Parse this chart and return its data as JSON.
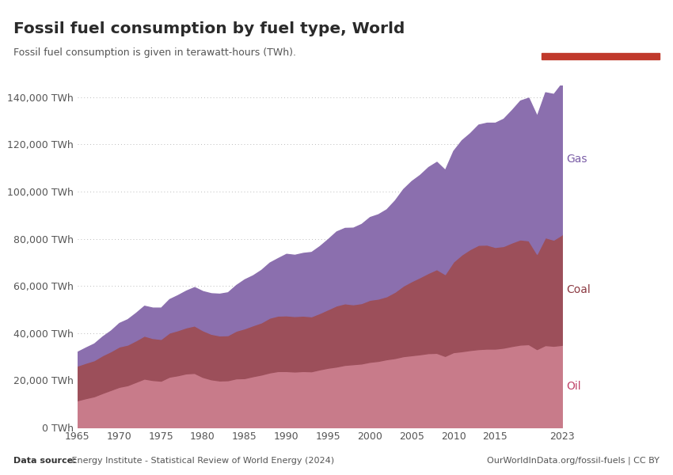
{
  "title": "Fossil fuel consumption by fuel type, World",
  "subtitle": "Fossil fuel consumption is given in terawatt-hours (TWh).",
  "source_left_bold": "Data source:",
  "source_left_normal": " Energy Institute - Statistical Review of World Energy (2024)",
  "source_right": "OurWorldInData.org/fossil-fuels | CC BY",
  "years": [
    1965,
    1966,
    1967,
    1968,
    1969,
    1970,
    1971,
    1972,
    1973,
    1974,
    1975,
    1976,
    1977,
    1978,
    1979,
    1980,
    1981,
    1982,
    1983,
    1984,
    1985,
    1986,
    1987,
    1988,
    1989,
    1990,
    1991,
    1992,
    1993,
    1994,
    1995,
    1996,
    1997,
    1998,
    1999,
    2000,
    2001,
    2002,
    2003,
    2004,
    2005,
    2006,
    2007,
    2008,
    2009,
    2010,
    2011,
    2012,
    2013,
    2014,
    2015,
    2016,
    2017,
    2018,
    2019,
    2020,
    2021,
    2022,
    2023
  ],
  "oil": [
    11500,
    12400,
    13200,
    14600,
    15900,
    17200,
    17900,
    19300,
    20700,
    20100,
    19800,
    21500,
    22100,
    22900,
    23100,
    21400,
    20400,
    19900,
    20000,
    20800,
    20900,
    21700,
    22400,
    23300,
    23900,
    23900,
    23700,
    23900,
    23800,
    24600,
    25300,
    25800,
    26500,
    26800,
    27100,
    27800,
    28200,
    28900,
    29400,
    30200,
    30600,
    31000,
    31500,
    31600,
    30300,
    31900,
    32300,
    32800,
    33200,
    33400,
    33400,
    33800,
    34500,
    35100,
    35300,
    33200,
    34900,
    34600,
    35000
  ],
  "coal": [
    14700,
    15000,
    15300,
    16000,
    16400,
    17100,
    17200,
    17600,
    18200,
    17800,
    17700,
    18700,
    19100,
    19500,
    20100,
    19800,
    19300,
    19100,
    19100,
    20200,
    21100,
    21600,
    22100,
    23200,
    23500,
    23600,
    23500,
    23500,
    23300,
    23900,
    24800,
    25900,
    26100,
    25400,
    25600,
    26300,
    26400,
    26700,
    28100,
    29900,
    31400,
    32700,
    34000,
    35500,
    34700,
    38400,
    41000,
    42800,
    44200,
    44100,
    43100,
    43100,
    43900,
    44600,
    44000,
    40400,
    45700,
    45000,
    46800
  ],
  "gas": [
    5900,
    6500,
    7100,
    8000,
    8800,
    10000,
    10800,
    11700,
    12700,
    12900,
    13300,
    14200,
    14900,
    15600,
    16300,
    16600,
    17200,
    17700,
    18200,
    19400,
    20800,
    21200,
    22300,
    23400,
    24400,
    26100,
    26000,
    26600,
    27300,
    28400,
    29800,
    31400,
    32000,
    32500,
    33600,
    35100,
    35800,
    36900,
    38800,
    41000,
    42500,
    43400,
    44900,
    45500,
    44200,
    47000,
    48500,
    49200,
    51000,
    51700,
    52700,
    54000,
    56200,
    58900,
    60500,
    58500,
    61500,
    61800,
    64200
  ],
  "oil_color": "#c87b8a",
  "coal_color": "#9c4f5a",
  "gas_color": "#8b6fae",
  "ylim": [
    0,
    145000
  ],
  "yticks": [
    0,
    20000,
    40000,
    60000,
    80000,
    100000,
    120000,
    140000
  ],
  "bg_color": "#ffffff",
  "grid_color": "#bbbbbb",
  "label_color_gas": "#7b5ea7",
  "label_color_coal": "#8c3a42",
  "label_color_oil": "#c0446a",
  "owid_box_color": "#1a2e4a",
  "owid_box_red": "#c0392b"
}
